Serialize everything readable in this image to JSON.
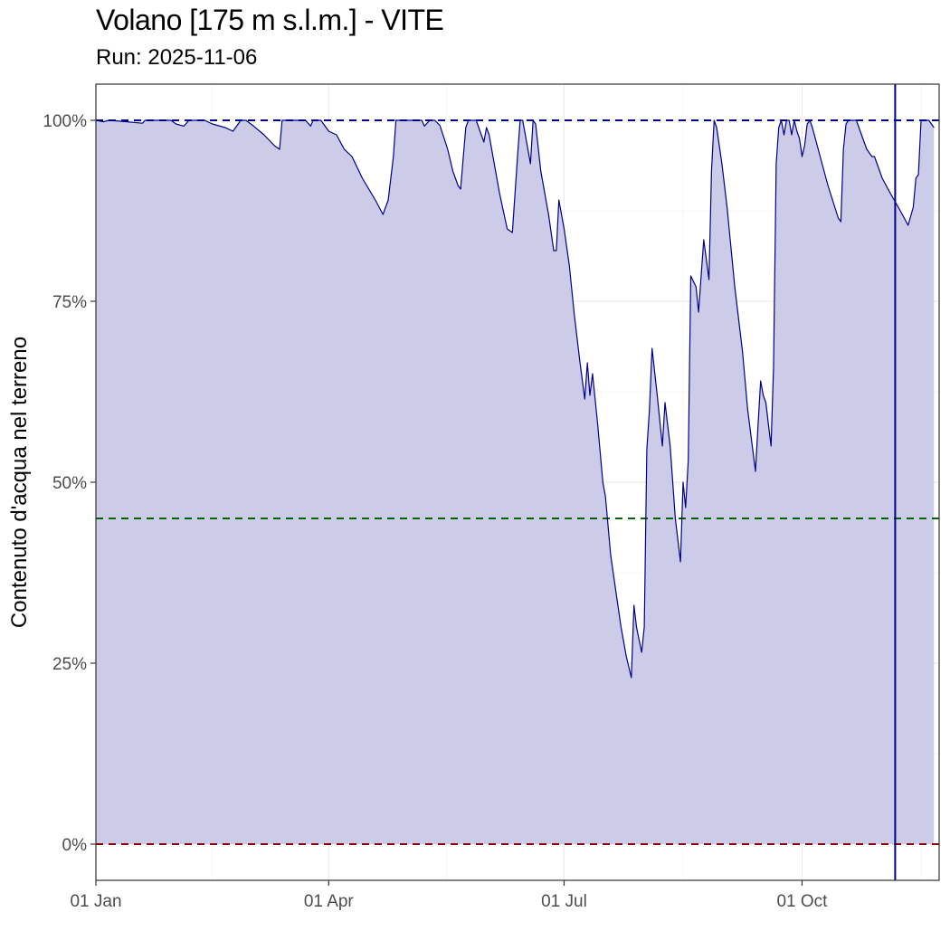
{
  "chart_data": {
    "type": "area",
    "title": "Volano [175 m s.l.m.] - VITE",
    "subtitle": "Run: 2025-11-06",
    "xlabel": "",
    "ylabel": "Contenuto d'acqua nel terreno",
    "x_ticks": [
      {
        "date": "2025-01-01",
        "label": "01 Jan"
      },
      {
        "date": "2025-04-01",
        "label": "01 Apr"
      },
      {
        "date": "2025-07-01",
        "label": "01 Jul"
      },
      {
        "date": "2025-10-01",
        "label": "01 Oct"
      }
    ],
    "y_ticks": [
      {
        "value": 0,
        "label": "0%"
      },
      {
        "value": 25,
        "label": "25%"
      },
      {
        "value": 50,
        "label": "50%"
      },
      {
        "value": 75,
        "label": "75%"
      },
      {
        "value": 100,
        "label": "100%"
      }
    ],
    "xlim": [
      "2025-01-01",
      "2025-11-23"
    ],
    "ylim": [
      -5,
      105
    ],
    "grid": true,
    "reference_lines": [
      {
        "value": 100,
        "color": "#00008b",
        "style": "dashed"
      },
      {
        "value": 45,
        "color": "#006400",
        "style": "dashed"
      },
      {
        "value": 0,
        "color": "#8b0000",
        "style": "dashed"
      }
    ],
    "run_date_line": {
      "date": "2025-11-06",
      "color": "#00008b"
    },
    "series": [
      {
        "line_color": "#00008b",
        "fill_color": "#cccce8",
        "points": [
          [
            "2025-01-01",
            100
          ],
          [
            "2025-01-04",
            99.8
          ],
          [
            "2025-01-06",
            100
          ],
          [
            "2025-01-13",
            99.8
          ],
          [
            "2025-01-19",
            99.6
          ],
          [
            "2025-01-20",
            100
          ],
          [
            "2025-01-30",
            100
          ],
          [
            "2025-02-01",
            99.5
          ],
          [
            "2025-02-04",
            99.2
          ],
          [
            "2025-02-06",
            100
          ],
          [
            "2025-02-12",
            100
          ],
          [
            "2025-02-15",
            99.5
          ],
          [
            "2025-02-20",
            99
          ],
          [
            "2025-02-23",
            98.5
          ],
          [
            "2025-02-26",
            100
          ],
          [
            "2025-02-28",
            100
          ],
          [
            "2025-03-03",
            99.2
          ],
          [
            "2025-03-07",
            98
          ],
          [
            "2025-03-11",
            96.5
          ],
          [
            "2025-03-13",
            96
          ],
          [
            "2025-03-14",
            100
          ],
          [
            "2025-03-23",
            100
          ],
          [
            "2025-03-25",
            99.2
          ],
          [
            "2025-03-26",
            100
          ],
          [
            "2025-03-29",
            100
          ],
          [
            "2025-04-01",
            98.5
          ],
          [
            "2025-04-04",
            98
          ],
          [
            "2025-04-07",
            96
          ],
          [
            "2025-04-10",
            95
          ],
          [
            "2025-04-14",
            92
          ],
          [
            "2025-04-19",
            89
          ],
          [
            "2025-04-22",
            87
          ],
          [
            "2025-04-24",
            89
          ],
          [
            "2025-04-26",
            95
          ],
          [
            "2025-04-27",
            100
          ],
          [
            "2025-05-07",
            100
          ],
          [
            "2025-05-08",
            99.2
          ],
          [
            "2025-05-10",
            100
          ],
          [
            "2025-05-12",
            100
          ],
          [
            "2025-05-14",
            99.3
          ],
          [
            "2025-05-17",
            96
          ],
          [
            "2025-05-19",
            93
          ],
          [
            "2025-05-21",
            91
          ],
          [
            "2025-05-22",
            90.5
          ],
          [
            "2025-05-24",
            99
          ],
          [
            "2025-05-25",
            100
          ],
          [
            "2025-05-28",
            100
          ],
          [
            "2025-05-31",
            97
          ],
          [
            "2025-06-01",
            99
          ],
          [
            "2025-06-02",
            98
          ],
          [
            "2025-06-04",
            94
          ],
          [
            "2025-06-06",
            90
          ],
          [
            "2025-06-09",
            85
          ],
          [
            "2025-06-11",
            84.5
          ],
          [
            "2025-06-13",
            95
          ],
          [
            "2025-06-14",
            100
          ],
          [
            "2025-06-15",
            100
          ],
          [
            "2025-06-16",
            98
          ],
          [
            "2025-06-18",
            94
          ],
          [
            "2025-06-19",
            100
          ],
          [
            "2025-06-20",
            99.5
          ],
          [
            "2025-06-22",
            93
          ],
          [
            "2025-06-25",
            87
          ],
          [
            "2025-06-27",
            82
          ],
          [
            "2025-06-28",
            82
          ],
          [
            "2025-06-29",
            89
          ],
          [
            "2025-07-01",
            85
          ],
          [
            "2025-07-03",
            80
          ],
          [
            "2025-07-05",
            73
          ],
          [
            "2025-07-07",
            67
          ],
          [
            "2025-07-09",
            61.5
          ],
          [
            "2025-07-10",
            66.5
          ],
          [
            "2025-07-11",
            62
          ],
          [
            "2025-07-12",
            65
          ],
          [
            "2025-07-14",
            58
          ],
          [
            "2025-07-16",
            50
          ],
          [
            "2025-07-17",
            48
          ],
          [
            "2025-07-19",
            40
          ],
          [
            "2025-07-21",
            35
          ],
          [
            "2025-07-23",
            30
          ],
          [
            "2025-07-25",
            26
          ],
          [
            "2025-07-27",
            23
          ],
          [
            "2025-07-28",
            33
          ],
          [
            "2025-07-29",
            30
          ],
          [
            "2025-07-31",
            26.5
          ],
          [
            "2025-08-01",
            30
          ],
          [
            "2025-08-02",
            54.5
          ],
          [
            "2025-08-03",
            60
          ],
          [
            "2025-08-04",
            68.5
          ],
          [
            "2025-08-06",
            62
          ],
          [
            "2025-08-08",
            55
          ],
          [
            "2025-08-09",
            61
          ],
          [
            "2025-08-11",
            55
          ],
          [
            "2025-08-13",
            45
          ],
          [
            "2025-08-15",
            39
          ],
          [
            "2025-08-16",
            50
          ],
          [
            "2025-08-17",
            46.5
          ],
          [
            "2025-08-18",
            53
          ],
          [
            "2025-08-19",
            78.5
          ],
          [
            "2025-08-21",
            77
          ],
          [
            "2025-08-22",
            73.5
          ],
          [
            "2025-08-24",
            83.5
          ],
          [
            "2025-08-26",
            78
          ],
          [
            "2025-08-27",
            93
          ],
          [
            "2025-08-28",
            100
          ],
          [
            "2025-08-29",
            99
          ],
          [
            "2025-08-31",
            94
          ],
          [
            "2025-09-02",
            88
          ],
          [
            "2025-09-05",
            77
          ],
          [
            "2025-09-08",
            68
          ],
          [
            "2025-09-10",
            60
          ],
          [
            "2025-09-13",
            51.5
          ],
          [
            "2025-09-14",
            58
          ],
          [
            "2025-09-15",
            64
          ],
          [
            "2025-09-16",
            62
          ],
          [
            "2025-09-17",
            61
          ],
          [
            "2025-09-18",
            58
          ],
          [
            "2025-09-19",
            55
          ],
          [
            "2025-09-20",
            66
          ],
          [
            "2025-09-21",
            94
          ],
          [
            "2025-09-22",
            99
          ],
          [
            "2025-09-23",
            100
          ],
          [
            "2025-09-24",
            98
          ],
          [
            "2025-09-25",
            100
          ],
          [
            "2025-09-26",
            100
          ],
          [
            "2025-09-27",
            98
          ],
          [
            "2025-09-28",
            100
          ],
          [
            "2025-09-29",
            98.5
          ],
          [
            "2025-09-30",
            97.5
          ],
          [
            "2025-10-01",
            95
          ],
          [
            "2025-10-02",
            96.5
          ],
          [
            "2025-10-03",
            99.5
          ],
          [
            "2025-10-04",
            100
          ],
          [
            "2025-10-05",
            99
          ],
          [
            "2025-10-08",
            95
          ],
          [
            "2025-10-11",
            91
          ],
          [
            "2025-10-15",
            86.5
          ],
          [
            "2025-10-16",
            86
          ],
          [
            "2025-10-17",
            96
          ],
          [
            "2025-10-18",
            99.5
          ],
          [
            "2025-10-19",
            100
          ],
          [
            "2025-10-22",
            100
          ],
          [
            "2025-10-24",
            98
          ],
          [
            "2025-10-26",
            96
          ],
          [
            "2025-10-28",
            95
          ],
          [
            "2025-10-29",
            95
          ],
          [
            "2025-11-01",
            92
          ],
          [
            "2025-11-04",
            90
          ],
          [
            "2025-11-08",
            87.5
          ],
          [
            "2025-11-11",
            85.5
          ],
          [
            "2025-11-13",
            88
          ],
          [
            "2025-11-14",
            92
          ],
          [
            "2025-11-15",
            92.5
          ],
          [
            "2025-11-16",
            100
          ],
          [
            "2025-11-19",
            100
          ],
          [
            "2025-11-21",
            99
          ]
        ]
      }
    ]
  }
}
